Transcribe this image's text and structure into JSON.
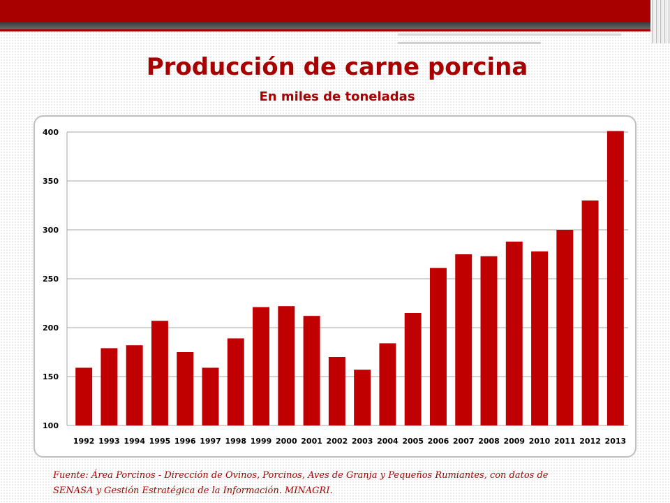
{
  "title": "Producción de carne porcina",
  "subtitle": "En miles de toneladas",
  "footnote": {
    "line1": "Fuente: Área Porcinos - Dirección de Ovinos, Porcinos, Aves de Granja y Pequeños Rumiantes, con datos de",
    "line2": "SENASA y Gestión Estratégica de la Información. MINAGRI."
  },
  "colors": {
    "accent": "#a80000",
    "bar": "#c00000",
    "grid": "#a6a6a6"
  },
  "chart_data": {
    "type": "bar",
    "title": "",
    "xlabel": "",
    "ylabel": "",
    "categories": [
      "1992",
      "1993",
      "1994",
      "1995",
      "1996",
      "1997",
      "1998",
      "1999",
      "2000",
      "2001",
      "2002",
      "2003",
      "2004",
      "2005",
      "2006",
      "2007",
      "2008",
      "2009",
      "2010",
      "2011",
      "2012",
      "2013"
    ],
    "values": [
      159,
      179,
      182,
      207,
      175,
      159,
      189,
      221,
      222,
      212,
      170,
      157,
      184,
      215,
      261,
      275,
      273,
      288,
      278,
      300,
      330,
      401
    ],
    "ylim": [
      100,
      400
    ],
    "yticks": [
      "100",
      "150",
      "200",
      "250",
      "300",
      "350",
      "400"
    ],
    "grid": true,
    "legend": "none"
  }
}
